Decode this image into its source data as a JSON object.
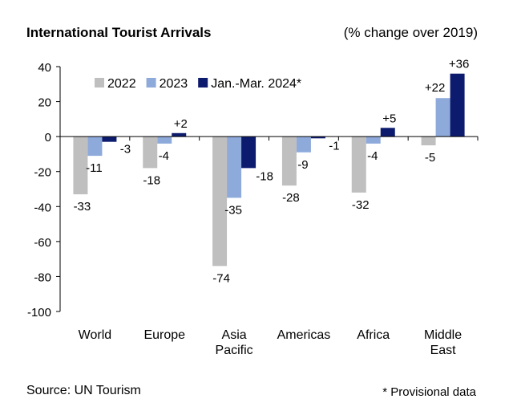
{
  "title": "International Tourist Arrivals",
  "subtitle": "(% change over 2019)",
  "source": "Source: UN Tourism",
  "footnote": "* Provisional data",
  "chart_data": {
    "type": "bar",
    "title": "International Tourist Arrivals",
    "ylabel": "% change over 2019",
    "xlabel": "",
    "ylim": [
      -100,
      40
    ],
    "yticks": [
      40,
      20,
      0,
      -20,
      -40,
      -60,
      -80,
      -100
    ],
    "grid": false,
    "legend_position": "top-left",
    "categories": [
      [
        "World"
      ],
      [
        "Europe"
      ],
      [
        "Asia",
        "Pacific"
      ],
      [
        "Americas"
      ],
      [
        "Africa"
      ],
      [
        "Middle",
        "East"
      ]
    ],
    "series": [
      {
        "name": "2022",
        "color": "#bfbfbf",
        "values": [
          -33,
          -18,
          -74,
          -28,
          -32,
          -5
        ],
        "labels": [
          "-33",
          "-18",
          "-74",
          "-28",
          "-32",
          "-5"
        ]
      },
      {
        "name": "2023",
        "color": "#8eaadb",
        "values": [
          -11,
          -4,
          -35,
          -9,
          -4,
          22
        ],
        "labels": [
          "-11",
          "-4",
          "-35",
          "-9",
          "-4",
          "+22"
        ]
      },
      {
        "name": "Jan.-Mar. 2024*",
        "color": "#0d1b6e",
        "values": [
          -3,
          2,
          -18,
          -1,
          5,
          36
        ],
        "labels": [
          "-3",
          "+2",
          "-18",
          "-1",
          "+5",
          "+36"
        ]
      }
    ]
  }
}
